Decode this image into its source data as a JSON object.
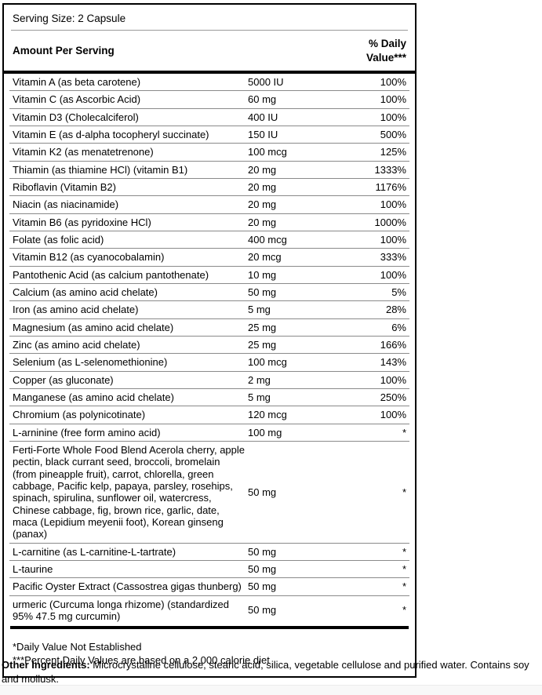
{
  "colors": {
    "box_border": "#000000",
    "row_separator": "#8a8a8a",
    "thin_rule": "#9a9a9a",
    "bottom_strip": "#f8f8f8",
    "text": "#000000"
  },
  "supplement_facts": {
    "serving_size": "Serving Size: 2 Capsule",
    "header": {
      "amount_per_serving": "Amount Per Serving",
      "daily_value_line1": "% Daily",
      "daily_value_line2": "Value***"
    },
    "rows": [
      {
        "name": "Vitamin A (as beta carotene)",
        "amount": "5000 IU",
        "daily_value": "100%"
      },
      {
        "name": "Vitamin C (as Ascorbic Acid)",
        "amount": "60 mg",
        "daily_value": "100%"
      },
      {
        "name": "Vitamin D3 (Cholecalciferol)",
        "amount": "400 IU",
        "daily_value": "100%"
      },
      {
        "name": "Vitamin E (as d-alpha tocopheryl succinate)",
        "amount": "150 IU",
        "daily_value": "500%"
      },
      {
        "name": "Vitamin K2 (as menatetrenone)",
        "amount": "100 mcg",
        "daily_value": "125%"
      },
      {
        "name": "Thiamin (as thiamine HCl) (vitamin B1)",
        "amount": "20 mg",
        "daily_value": "1333%"
      },
      {
        "name": "Riboflavin (Vitamin B2)",
        "amount": "20 mg",
        "daily_value": "1176%"
      },
      {
        "name": "Niacin (as niacinamide)",
        "amount": "20 mg",
        "daily_value": "100%"
      },
      {
        "name": "Vitamin B6 (as pyridoxine HCl)",
        "amount": "20 mg",
        "daily_value": "1000%"
      },
      {
        "name": "Folate (as folic acid)",
        "amount": "400 mcg",
        "daily_value": "100%"
      },
      {
        "name": "Vitamin B12 (as cyanocobalamin)",
        "amount": "20 mcg",
        "daily_value": "333%"
      },
      {
        "name": "Pantothenic Acid (as calcium pantothenate)",
        "amount": "10 mg",
        "daily_value": "100%"
      },
      {
        "name": "Calcium (as amino acid chelate)",
        "amount": "50 mg",
        "daily_value": "5%"
      },
      {
        "name": "Iron (as amino acid chelate)",
        "amount": "5 mg",
        "daily_value": "28%"
      },
      {
        "name": "Magnesium (as amino acid chelate)",
        "amount": "25 mg",
        "daily_value": "6%"
      },
      {
        "name": "Zinc (as amino acid chelate)",
        "amount": "25 mg",
        "daily_value": "166%"
      },
      {
        "name": "Selenium (as L-selenomethionine)",
        "amount": "100 mcg",
        "daily_value": "143%"
      },
      {
        "name": "Copper (as gluconate)",
        "amount": "2 mg",
        "daily_value": "100%"
      },
      {
        "name": "Manganese (as amino acid chelate)",
        "amount": "5 mg",
        "daily_value": "250%"
      },
      {
        "name": "Chromium (as polynicotinate)",
        "amount": "120 mcg",
        "daily_value": "100%"
      },
      {
        "name": "L-arninine (free form amino acid)",
        "amount": "100 mg",
        "daily_value": "*"
      },
      {
        "name": "Ferti-Forte Whole Food Blend Acerola cherry, apple pectin, black currant seed, broccoli, bromelain (from pineapple fruit), carrot, chlorella, green cabbage, Pacific kelp, papaya, parsley, rosehips, spinach, spirulina, sunflower oil, watercress, Chinese cabbage, fig, brown rice, garlic, date, maca (Lepidium meyenii foot), Korean ginseng (panax)",
        "amount": "50 mg",
        "daily_value": "*"
      },
      {
        "name": "L-carnitine (as L-carnitine-L-tartrate)",
        "amount": "50 mg",
        "daily_value": "*"
      },
      {
        "name": "L-taurine",
        "amount": "50 mg",
        "daily_value": "*"
      },
      {
        "name": "Pacific Oyster Extract (Cassostrea gigas thunberg)",
        "amount": "50 mg",
        "daily_value": "*"
      },
      {
        "name": "urmeric (Curcuma longa rhizome) (standardized 95% 47.5 mg curcumin)",
        "amount": "50 mg",
        "daily_value": "*"
      }
    ],
    "footnotes": [
      "*Daily Value Not Established",
      "***Percent Daily Values are based on a 2,000 calorie diet"
    ]
  },
  "other_ingredients": {
    "label": "Other Ingredients:",
    "text": " Microcrystaline cellulose, stearic acid, silica, vegetable cellulose and purified water. Contains soy and mollusk."
  }
}
